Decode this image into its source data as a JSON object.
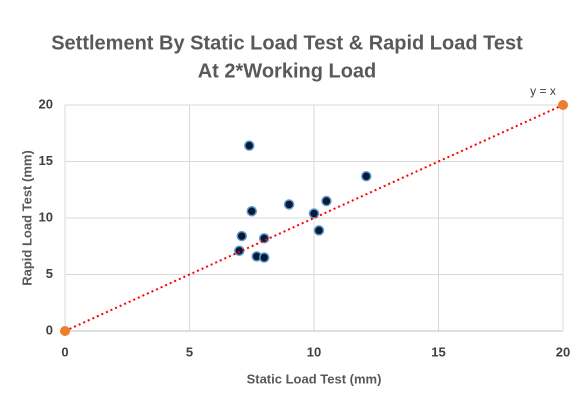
{
  "chart_data": {
    "type": "scatter",
    "title": [
      "Settlement By Static Load Test & Rapid Load Test",
      "At 2*Working Load"
    ],
    "x_label": "Static Load Test (mm)",
    "y_label": "Rapid Load Test (mm)",
    "annotation": "y = x",
    "xlim": [
      0,
      20
    ],
    "xticks": [
      0,
      5,
      10,
      15,
      20
    ],
    "ylim": [
      0,
      20
    ],
    "yticks": [
      0,
      5,
      10,
      15,
      20
    ],
    "grid": true,
    "series": [
      {
        "color": "#0b1a33",
        "x": [
          7.4,
          7.5,
          9.0,
          10.0,
          10.5,
          12.1,
          10.2,
          7.1,
          8.0,
          7.0,
          7.7,
          8.0
        ],
        "values": [
          16.4,
          10.6,
          11.2,
          10.4,
          11.5,
          13.7,
          8.9,
          8.4,
          8.2,
          7.1,
          6.6,
          6.5
        ]
      },
      {
        "color": "#ed7d31",
        "line_color": "#ff0000",
        "line_style": "dotted",
        "x": [
          0,
          20
        ],
        "values": [
          0,
          20
        ]
      }
    ]
  }
}
